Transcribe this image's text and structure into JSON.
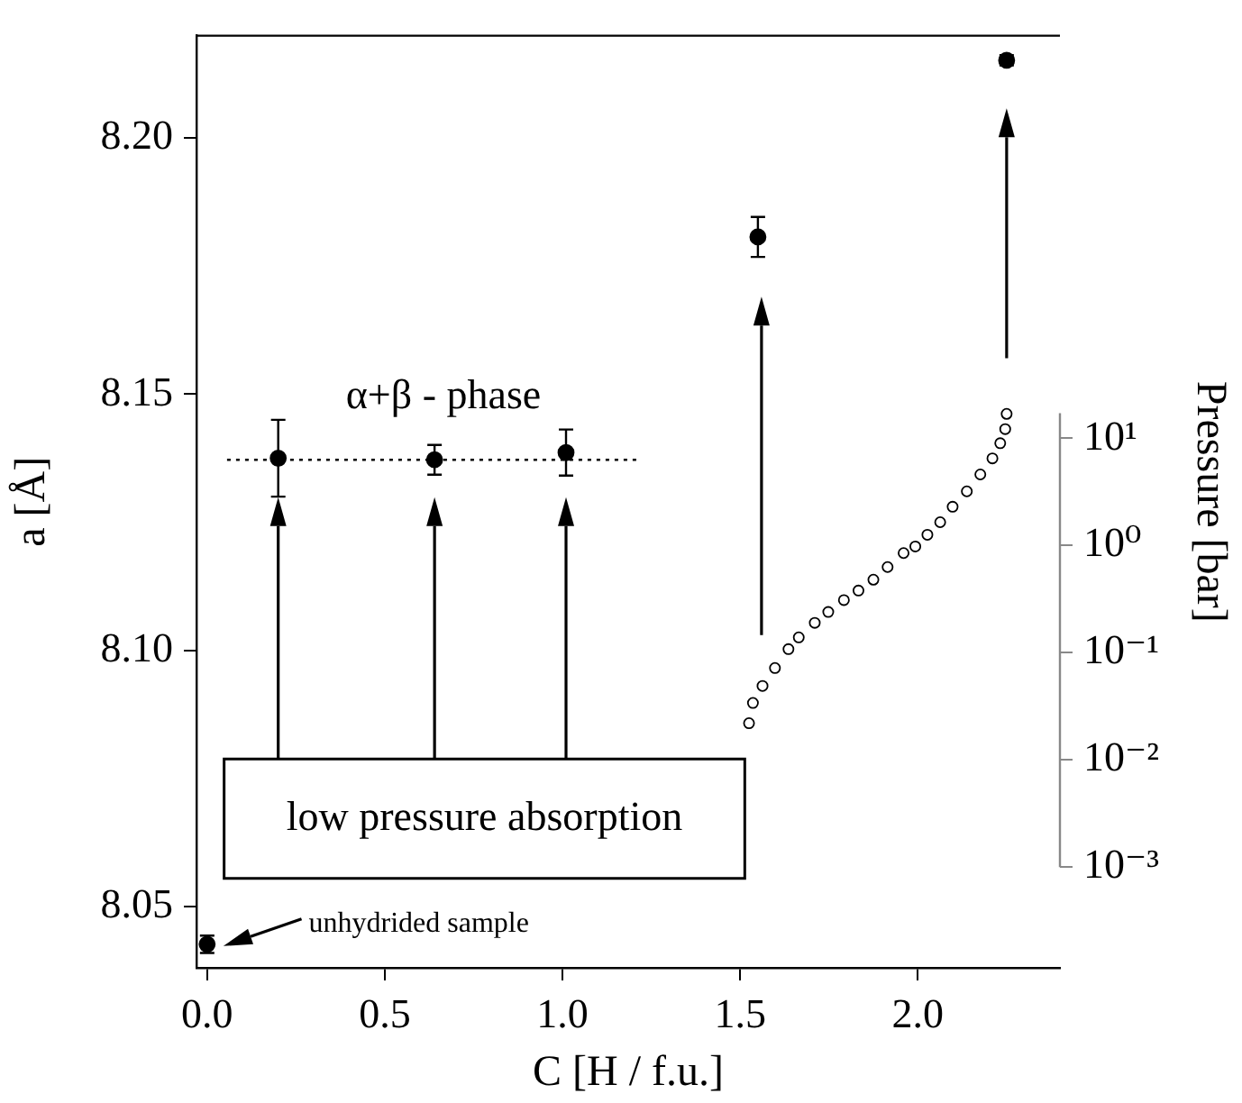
{
  "chart_data": {
    "type": "scatter",
    "xlabel": "C [H / f.u.]",
    "ylabel": "a [Å]",
    "y2label": "Pressure [bar]",
    "xlim": [
      -0.03,
      2.4
    ],
    "xticks": [
      {
        "value": 0,
        "label": "0.0"
      },
      {
        "value": 0.5,
        "label": "0.5"
      },
      {
        "value": 1,
        "label": "1.0"
      },
      {
        "value": 1.5,
        "label": "1.5"
      },
      {
        "value": 2,
        "label": "2.0"
      }
    ],
    "ylim": [
      8.038,
      8.22
    ],
    "yticks": [
      {
        "value": 8.05,
        "label": "8.05"
      },
      {
        "value": 8.1,
        "label": "8.10"
      },
      {
        "value": 8.15,
        "label": "8.15"
      },
      {
        "value": 8.2,
        "label": "8.20"
      }
    ],
    "y2lim": [
      0.000115,
      57000
    ],
    "y2ticks": [
      {
        "value": 0.001,
        "label": "10⁻³"
      },
      {
        "value": 0.01,
        "label": "10⁻²"
      },
      {
        "value": 0.1,
        "label": "10⁻¹"
      },
      {
        "value": 1,
        "label": "10⁰"
      },
      {
        "value": 10,
        "label": "10¹"
      }
    ],
    "log": "y2",
    "marker": "circle",
    "annotations": [
      "α+β - phase",
      "low pressure absorption",
      "unhydrided sample"
    ],
    "series": [
      {
        "type": "scatter",
        "color": "#000000",
        "x": [
          0,
          0.2,
          0.64,
          1.01,
          1.55,
          2.25
        ],
        "values": [
          8.0426,
          8.1375,
          8.1372,
          8.1386,
          8.1807,
          8.2152
        ],
        "errors": [
          0.0017,
          0.0075,
          0.0029,
          0.0045,
          0.0039,
          0.001
        ]
      },
      {
        "type": "line",
        "line_style": "dotted",
        "marker": "none",
        "color": "#000000",
        "x": [
          0.056,
          1.21
        ],
        "values": [
          8.1372,
          8.1372
        ]
      },
      {
        "type": "scatter",
        "axis": "y2",
        "color": "#000000",
        "x": [
          1.525,
          1.536,
          1.563,
          1.598,
          1.636,
          1.665,
          1.71,
          1.748,
          1.792,
          1.833,
          1.875,
          1.915,
          1.96,
          1.993,
          2.027,
          2.063,
          2.098,
          2.138,
          2.176,
          2.21,
          2.232,
          2.246,
          2.25
        ],
        "values": [
          0.022,
          0.034,
          0.049,
          0.072,
          0.108,
          0.139,
          0.19,
          0.24,
          0.31,
          0.38,
          0.48,
          0.63,
          0.85,
          0.98,
          1.26,
          1.65,
          2.3,
          3.2,
          4.6,
          6.5,
          9.0,
          12.2,
          16.9
        ]
      }
    ]
  }
}
